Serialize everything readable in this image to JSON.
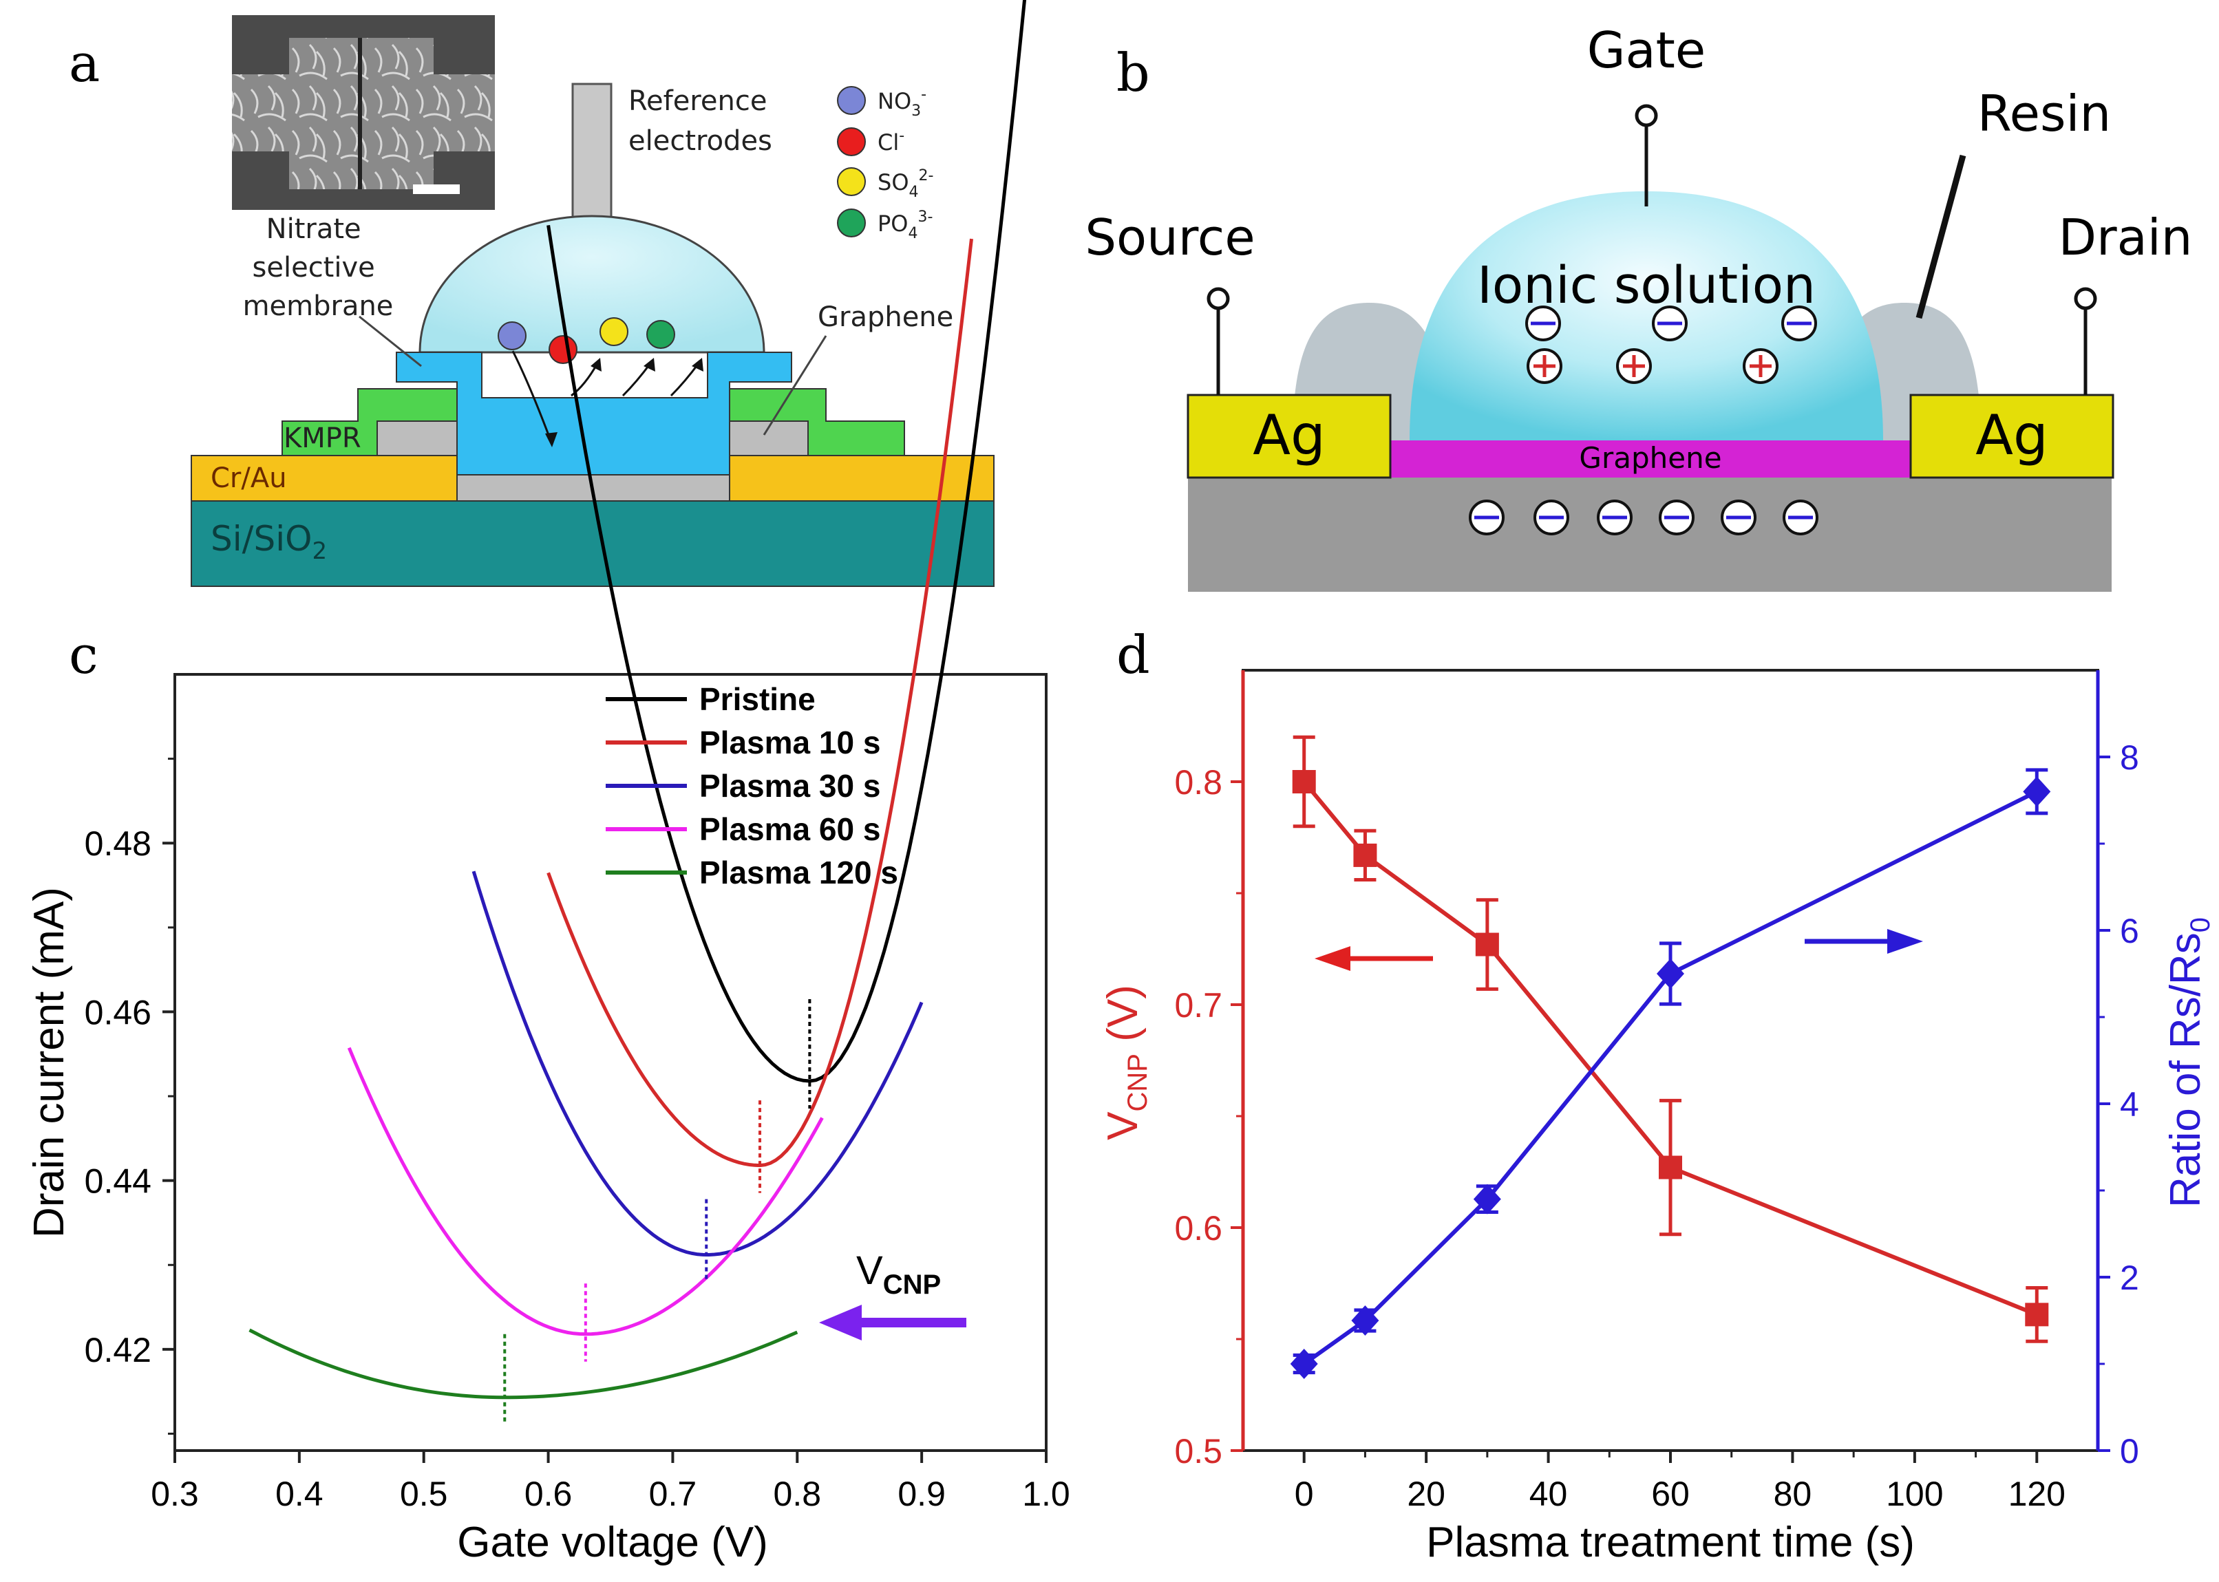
{
  "panel_labels": {
    "a": "a",
    "b": "b",
    "c": "c",
    "d": "d"
  },
  "panel_a": {
    "reference": [
      "Reference",
      "electrodes"
    ],
    "membrane": [
      "Nitrate",
      "selective",
      "membrane"
    ],
    "graphene": "Graphene",
    "kmpr": "KMPR",
    "cr_au": "Cr/Au",
    "substrate": {
      "base": "Si/SiO",
      "sub": "2"
    },
    "ions": [
      {
        "base": "NO",
        "sub": "3",
        "sup": "-",
        "color": "#7b86d6"
      },
      {
        "base": "Cl",
        "sub": "",
        "sup": "-",
        "color": "#e81e1e"
      },
      {
        "base": "SO",
        "sub": "4",
        "sup": "2-",
        "color": "#f4e21a"
      },
      {
        "base": "PO",
        "sub": "4",
        "sup": "3-",
        "color": "#1fa45a"
      }
    ]
  },
  "panel_b": {
    "gate": "Gate",
    "resin": "Resin",
    "source": "Source",
    "drain": "Drain",
    "solution": "Ionic solution",
    "ag_left": "Ag",
    "ag_right": "Ag",
    "graphene": "Graphene"
  },
  "panel_c": {
    "annotation": {
      "base": "V",
      "sub": "CNP"
    }
  },
  "chart_data": [
    {
      "type": "line",
      "panel": "c",
      "xlabel": "Gate voltage (V)",
      "ylabel": "Drain current (mA)",
      "xlim": [
        0.3,
        1.0
      ],
      "ylim": [
        0.408,
        0.5
      ],
      "xticks": [
        0.3,
        0.4,
        0.5,
        0.6,
        0.7,
        0.8,
        0.9,
        1.0
      ],
      "xtick_labels": [
        "0.3",
        "0.4",
        "0.5",
        "0.6",
        "0.7",
        "0.8",
        "0.9",
        "1.0"
      ],
      "yticks": [
        0.42,
        0.44,
        0.46,
        0.48
      ],
      "ytick_labels": [
        "0.42",
        "0.44",
        "0.46",
        "0.48"
      ],
      "legend": "top-right",
      "series": [
        {
          "name": "Pristine",
          "color": "#000000",
          "x_range": [
            0.6,
            1.0
          ],
          "vmin": 0.81,
          "imin": 0.4518,
          "k_left": 2.3,
          "k_right": 4.3
        },
        {
          "name": "Plasma 10 s",
          "color": "#d42a2a",
          "x_range": [
            0.6,
            0.94
          ],
          "vmin": 0.77,
          "imin": 0.4418,
          "k_left": 1.2,
          "k_right": 3.8
        },
        {
          "name": "Plasma 30 s",
          "color": "#2a1ab8",
          "x_range": [
            0.54,
            0.9
          ],
          "vmin": 0.727,
          "imin": 0.4312,
          "k_left": 1.3,
          "k_right": 1.0
        },
        {
          "name": "Plasma 60 s",
          "color": "#ee22ee",
          "x_range": [
            0.44,
            0.82
          ],
          "vmin": 0.63,
          "imin": 0.4218,
          "k_left": 0.94,
          "k_right": 0.71
        },
        {
          "name": "Plasma 120 s",
          "color": "#1e7e1e",
          "x_range": [
            0.36,
            0.8
          ],
          "vmin": 0.565,
          "imin": 0.4143,
          "k_left": 0.19,
          "k_right": 0.14
        }
      ],
      "cnp_markers": [
        {
          "x": 0.81,
          "color": "#000000",
          "top": 0.4615
        },
        {
          "x": 0.77,
          "color": "#d42a2a",
          "top": 0.4495
        },
        {
          "x": 0.727,
          "color": "#2a1ab8",
          "top": 0.4378
        },
        {
          "x": 0.63,
          "color": "#ee22ee",
          "top": 0.4278
        },
        {
          "x": 0.565,
          "color": "#1e7e1e",
          "top": 0.4218
        }
      ]
    },
    {
      "type": "line",
      "panel": "d",
      "xlabel": "Plasma treatment time (s)",
      "xlim": [
        -10,
        130
      ],
      "xticks": [
        0,
        20,
        40,
        60,
        80,
        100,
        120
      ],
      "xtick_labels": [
        "0",
        "20",
        "40",
        "60",
        "80",
        "100",
        "120"
      ],
      "left_axis": {
        "label_base": "V",
        "label_sub": "CNP",
        "label_tail": " (V)",
        "lim": [
          0.5,
          0.85
        ],
        "ticks": [
          0.5,
          0.6,
          0.7,
          0.8
        ],
        "tick_labels": [
          "0.5",
          "0.6",
          "0.7",
          "0.8"
        ],
        "color": "#d42a2a"
      },
      "right_axis": {
        "label_base": "Ratio of Rs/Rs",
        "label_sub": "0",
        "lim": [
          0,
          9
        ],
        "ticks": [
          0,
          2,
          4,
          6,
          8
        ],
        "tick_labels": [
          "0",
          "2",
          "4",
          "6",
          "8"
        ],
        "color": "#2a1ad6"
      },
      "series": [
        {
          "name": "V_CNP",
          "axis": "left",
          "marker": "square",
          "color": "#d42a2a",
          "x": [
            0,
            10,
            30,
            60,
            120
          ],
          "y": [
            0.8,
            0.767,
            0.727,
            0.627,
            0.561
          ],
          "err": [
            0.02,
            0.011,
            0.02,
            0.03,
            0.012
          ]
        },
        {
          "name": "Ratio of Rs/Rs0",
          "axis": "right",
          "marker": "diamond",
          "color": "#2a1ad6",
          "x": [
            0,
            10,
            30,
            60,
            120
          ],
          "y": [
            1.0,
            1.5,
            2.9,
            5.5,
            7.6
          ],
          "err": [
            0.1,
            0.12,
            0.15,
            0.35,
            0.25
          ]
        }
      ]
    }
  ]
}
